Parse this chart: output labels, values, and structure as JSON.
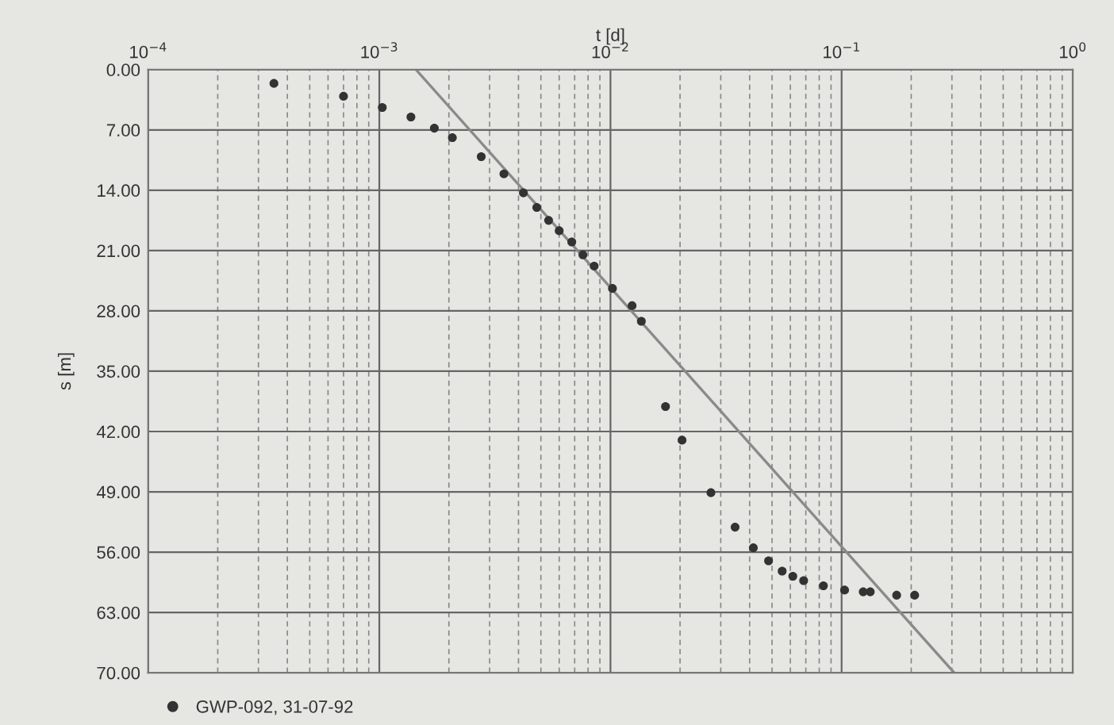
{
  "chart_data": {
    "type": "scatter",
    "xlabel": "t [d]",
    "ylabel": "s [m]",
    "log": "x",
    "xlim": [
      0.0001,
      1
    ],
    "xticks": [
      {
        "value": 0.0001,
        "label": "10$^{−4}$"
      },
      {
        "value": 0.001,
        "label": "10$^{−3}$"
      },
      {
        "value": 0.01,
        "label": "10$^{−2}$"
      },
      {
        "value": 0.1,
        "label": "10$^{−1}$"
      },
      {
        "value": 1,
        "label": "10$^{0}$"
      }
    ],
    "ylim": [
      70,
      0
    ],
    "yticks": [
      {
        "value": 0,
        "label": "0.00"
      },
      {
        "value": 7,
        "label": "7.00"
      },
      {
        "value": 14,
        "label": "14.00"
      },
      {
        "value": 21,
        "label": "21.00"
      },
      {
        "value": 28,
        "label": "28.00"
      },
      {
        "value": 35,
        "label": "35.00"
      },
      {
        "value": 42,
        "label": "42.00"
      },
      {
        "value": 49,
        "label": "49.00"
      },
      {
        "value": 56,
        "label": "56.00"
      },
      {
        "value": 63,
        "label": "63.00"
      },
      {
        "value": 70,
        "label": "70.00"
      }
    ],
    "grid": true,
    "legend": "bottom left",
    "series": [
      {
        "name": "GWP-092, 31-07-92",
        "marker": "circle",
        "color": "#333333",
        "x": [
          0.00035,
          0.0007,
          0.00103,
          0.00137,
          0.00173,
          0.00207,
          0.00276,
          0.00346,
          0.0042,
          0.0048,
          0.0054,
          0.006,
          0.0068,
          0.0076,
          0.0085,
          0.0102,
          0.0124,
          0.0136,
          0.0173,
          0.0204,
          0.0272,
          0.0346,
          0.0415,
          0.0483,
          0.0553,
          0.0615,
          0.0685,
          0.0834,
          0.103,
          0.124,
          0.133,
          0.173,
          0.207
        ],
        "values": [
          1.6,
          3.1,
          4.4,
          5.5,
          6.8,
          7.9,
          10.1,
          12.1,
          14.3,
          16.0,
          17.5,
          18.7,
          20.0,
          21.5,
          22.8,
          25.4,
          27.4,
          29.2,
          39.1,
          43.0,
          49.1,
          53.1,
          55.5,
          57.0,
          58.2,
          58.8,
          59.3,
          59.9,
          60.4,
          60.6,
          60.6,
          61.0,
          61.0
        ]
      },
      {
        "type": "line",
        "marker": "none",
        "color": "#8a8a8a",
        "x": [
          0.00144,
          0.307
        ],
        "values": [
          0,
          70
        ]
      }
    ]
  }
}
